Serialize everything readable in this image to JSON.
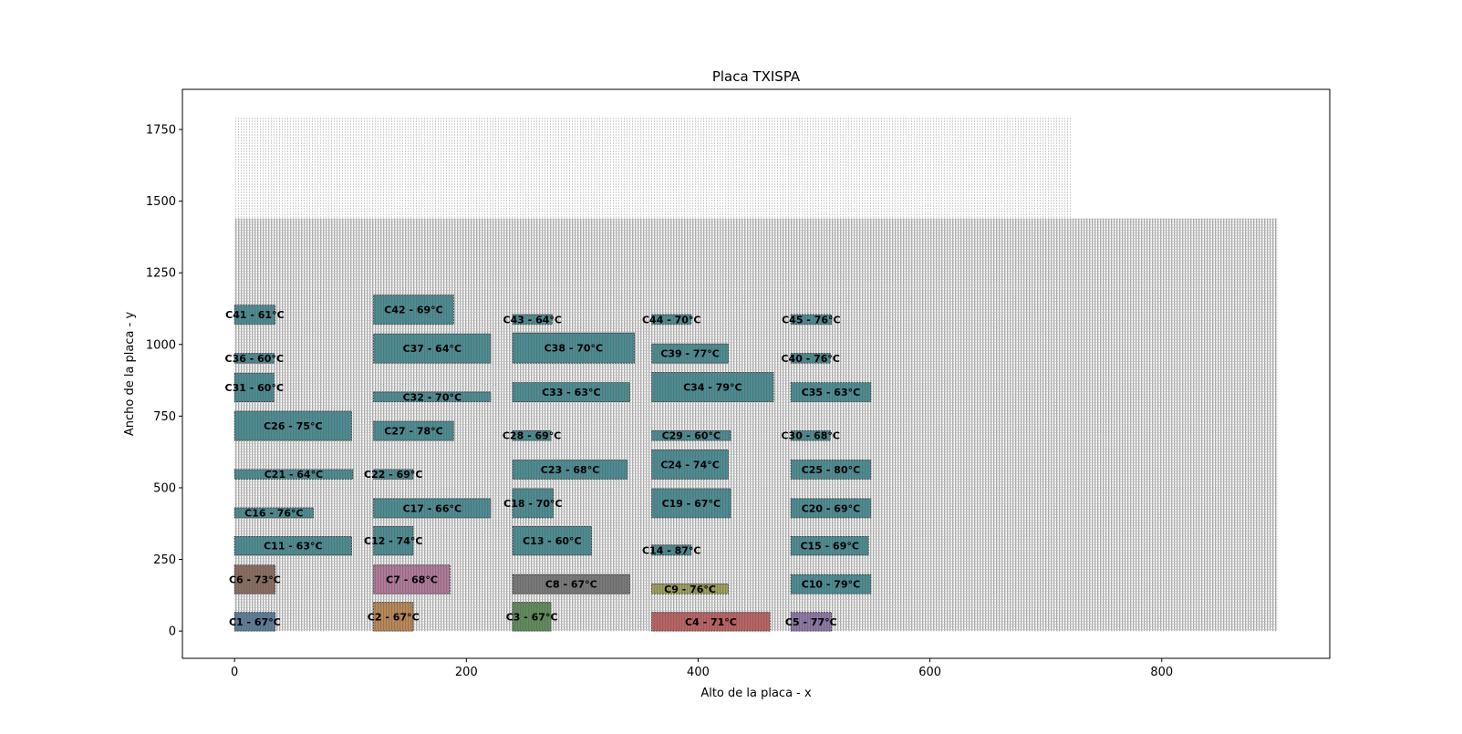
{
  "chart_data": {
    "type": "scatter",
    "title": "Placa TXISPA",
    "xlabel": "Alto de la placa - x",
    "ylabel": "Ancho de la placa - y",
    "xlim": [
      -45,
      945
    ],
    "ylim": [
      -95,
      1890
    ],
    "xticks": [
      0,
      200,
      400,
      600,
      800
    ],
    "yticks": [
      0,
      250,
      500,
      750,
      1000,
      1250,
      1500,
      1750
    ],
    "background_regions": [
      {
        "x0": 0,
        "x1": 722,
        "y0": 0,
        "y1": 1795,
        "color": "#cfcfcf"
      },
      {
        "x0": 0,
        "x1": 900,
        "y0": 0,
        "y1": 1440,
        "color": "#a8a8a8"
      }
    ],
    "components": [
      {
        "label": "C1 - 67°C",
        "x0": 0,
        "x1": 35,
        "y0": 0,
        "y1": 65,
        "color": "#5b7f9e"
      },
      {
        "label": "C2 - 67°C",
        "x0": 120,
        "x1": 154,
        "y0": 0,
        "y1": 100,
        "color": "#c08a54"
      },
      {
        "label": "C3 - 67°C",
        "x0": 240,
        "x1": 273,
        "y0": 0,
        "y1": 100,
        "color": "#5f8f5a"
      },
      {
        "label": "C4 - 71°C",
        "x0": 360,
        "x1": 462,
        "y0": 0,
        "y1": 65,
        "color": "#c26262"
      },
      {
        "label": "C5 - 77°C",
        "x0": 480,
        "x1": 515,
        "y0": 0,
        "y1": 65,
        "color": "#8f79aa"
      },
      {
        "label": "C6 - 73°C",
        "x0": 0,
        "x1": 35,
        "y0": 130,
        "y1": 230,
        "color": "#8c6e60"
      },
      {
        "label": "C7 - 68°C",
        "x0": 120,
        "x1": 186,
        "y0": 130,
        "y1": 230,
        "color": "#b57a9c"
      },
      {
        "label": "C8 - 67°C",
        "x0": 240,
        "x1": 341,
        "y0": 130,
        "y1": 197,
        "color": "#7a7a7a"
      },
      {
        "label": "C9 - 76°C",
        "x0": 360,
        "x1": 426,
        "y0": 130,
        "y1": 164,
        "color": "#a3a35a"
      },
      {
        "label": "C10 - 79°C",
        "x0": 480,
        "x1": 549,
        "y0": 130,
        "y1": 197,
        "color": "#4a8f96"
      },
      {
        "label": "C11 - 63°C",
        "x0": 0,
        "x1": 101,
        "y0": 265,
        "y1": 330,
        "color": "#4a8f96"
      },
      {
        "label": "C12 - 74°C",
        "x0": 120,
        "x1": 154,
        "y0": 265,
        "y1": 365,
        "color": "#4a8f96"
      },
      {
        "label": "C13 - 60°C",
        "x0": 240,
        "x1": 308,
        "y0": 265,
        "y1": 365,
        "color": "#4a8f96"
      },
      {
        "label": "C14 - 87°C",
        "x0": 360,
        "x1": 394,
        "y0": 265,
        "y1": 300,
        "color": "#4a8f96"
      },
      {
        "label": "C15 - 69°C",
        "x0": 480,
        "x1": 547,
        "y0": 265,
        "y1": 330,
        "color": "#4a8f96"
      },
      {
        "label": "C16 - 76°C",
        "x0": 0,
        "x1": 68,
        "y0": 395,
        "y1": 430,
        "color": "#4a8f96"
      },
      {
        "label": "C17 - 66°C",
        "x0": 120,
        "x1": 221,
        "y0": 395,
        "y1": 462,
        "color": "#4a8f96"
      },
      {
        "label": "C18 - 70°C",
        "x0": 240,
        "x1": 275,
        "y0": 395,
        "y1": 497,
        "color": "#4a8f96"
      },
      {
        "label": "C19 - 67°C",
        "x0": 360,
        "x1": 428,
        "y0": 395,
        "y1": 497,
        "color": "#4a8f96"
      },
      {
        "label": "C20 - 69°C",
        "x0": 480,
        "x1": 549,
        "y0": 395,
        "y1": 462,
        "color": "#4a8f96"
      },
      {
        "label": "C21 - 64°C",
        "x0": 0,
        "x1": 102,
        "y0": 530,
        "y1": 564,
        "color": "#4a8f96"
      },
      {
        "label": "C22 - 69°C",
        "x0": 120,
        "x1": 154,
        "y0": 530,
        "y1": 564,
        "color": "#4a8f96"
      },
      {
        "label": "C23 - 68°C",
        "x0": 240,
        "x1": 339,
        "y0": 530,
        "y1": 597,
        "color": "#4a8f96"
      },
      {
        "label": "C24 - 74°C",
        "x0": 360,
        "x1": 426,
        "y0": 530,
        "y1": 632,
        "color": "#4a8f96"
      },
      {
        "label": "C25 - 80°C",
        "x0": 480,
        "x1": 549,
        "y0": 530,
        "y1": 597,
        "color": "#4a8f96"
      },
      {
        "label": "C26 - 75°C",
        "x0": 0,
        "x1": 101,
        "y0": 665,
        "y1": 767,
        "color": "#4a8f96"
      },
      {
        "label": "C27 - 78°C",
        "x0": 120,
        "x1": 189,
        "y0": 665,
        "y1": 732,
        "color": "#4a8f96"
      },
      {
        "label": "C28 - 69°C",
        "x0": 240,
        "x1": 273,
        "y0": 665,
        "y1": 699,
        "color": "#4a8f96"
      },
      {
        "label": "C29 - 60°C",
        "x0": 360,
        "x1": 428,
        "y0": 665,
        "y1": 699,
        "color": "#4a8f96"
      },
      {
        "label": "C30 - 68°C",
        "x0": 480,
        "x1": 514,
        "y0": 665,
        "y1": 699,
        "color": "#4a8f96"
      },
      {
        "label": "C31 - 60°C",
        "x0": 0,
        "x1": 34,
        "y0": 800,
        "y1": 900,
        "color": "#4a8f96"
      },
      {
        "label": "C32 - 70°C",
        "x0": 120,
        "x1": 221,
        "y0": 800,
        "y1": 834,
        "color": "#4a8f96"
      },
      {
        "label": "C33 - 63°C",
        "x0": 240,
        "x1": 341,
        "y0": 800,
        "y1": 867,
        "color": "#4a8f96"
      },
      {
        "label": "C34 - 79°C",
        "x0": 360,
        "x1": 465,
        "y0": 800,
        "y1": 902,
        "color": "#4a8f96"
      },
      {
        "label": "C35 - 63°C",
        "x0": 480,
        "x1": 549,
        "y0": 800,
        "y1": 867,
        "color": "#4a8f96"
      },
      {
        "label": "C36 - 60°C",
        "x0": 0,
        "x1": 34,
        "y0": 935,
        "y1": 969,
        "color": "#4a8f96"
      },
      {
        "label": "C37 - 64°C",
        "x0": 120,
        "x1": 221,
        "y0": 935,
        "y1": 1037,
        "color": "#4a8f96"
      },
      {
        "label": "C38 - 70°C",
        "x0": 240,
        "x1": 345,
        "y0": 935,
        "y1": 1040,
        "color": "#4a8f96"
      },
      {
        "label": "C39 - 77°C",
        "x0": 360,
        "x1": 426,
        "y0": 935,
        "y1": 1002,
        "color": "#4a8f96"
      },
      {
        "label": "C40 - 76°C",
        "x0": 480,
        "x1": 514,
        "y0": 935,
        "y1": 969,
        "color": "#4a8f96"
      },
      {
        "label": "C41 - 61°C",
        "x0": 0,
        "x1": 35,
        "y0": 1070,
        "y1": 1137,
        "color": "#4a8f96"
      },
      {
        "label": "C42 - 69°C",
        "x0": 120,
        "x1": 189,
        "y0": 1070,
        "y1": 1172,
        "color": "#4a8f96"
      },
      {
        "label": "C43 - 64°C",
        "x0": 240,
        "x1": 274,
        "y0": 1070,
        "y1": 1104,
        "color": "#4a8f96"
      },
      {
        "label": "C44 - 70°C",
        "x0": 360,
        "x1": 394,
        "y0": 1070,
        "y1": 1104,
        "color": "#4a8f96"
      },
      {
        "label": "C45 - 76°C",
        "x0": 480,
        "x1": 515,
        "y0": 1070,
        "y1": 1104,
        "color": "#4a8f96"
      }
    ]
  }
}
